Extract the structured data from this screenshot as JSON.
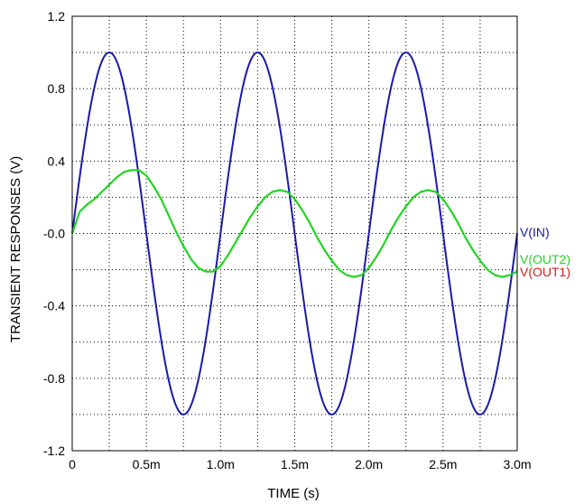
{
  "chart_data": {
    "type": "line",
    "xlabel": "TIME  (s)",
    "ylabel": "TRANSIENT RESPONSES  (V)",
    "xlim": [
      0,
      0.003
    ],
    "ylim": [
      -1.2,
      1.2
    ],
    "x_ticks": [
      {
        "value": 0,
        "label": "0"
      },
      {
        "value": 0.0005,
        "label": "0.5m"
      },
      {
        "value": 0.001,
        "label": "1.0m"
      },
      {
        "value": 0.0015,
        "label": "1.5m"
      },
      {
        "value": 0.002,
        "label": "2.0m"
      },
      {
        "value": 0.0025,
        "label": "2.5m"
      },
      {
        "value": 0.003,
        "label": "3.0m"
      }
    ],
    "y_ticks": [
      {
        "value": 1.2,
        "label": "1.2"
      },
      {
        "value": 0.8,
        "label": "0.8"
      },
      {
        "value": 0.4,
        "label": "0.4"
      },
      {
        "value": 0,
        "label": "-0.0"
      },
      {
        "value": -0.4,
        "label": "-0.4"
      },
      {
        "value": -0.8,
        "label": "-0.8"
      },
      {
        "value": -1.2,
        "label": "-1.2"
      }
    ],
    "grid": true,
    "x_grid_values": [
      0.00025,
      0.0005,
      0.00075,
      0.001,
      0.00125,
      0.0015,
      0.00175,
      0.002,
      0.00225,
      0.0025,
      0.00275
    ],
    "y_grid_values": [
      1.0,
      0.8,
      0.6,
      0.4,
      0.2,
      0,
      -0.2,
      -0.4,
      -0.6,
      -0.8,
      -1.0
    ],
    "series": [
      {
        "name": "V(IN)",
        "color": "#1a1aa8",
        "x": [
          0,
          0.00025,
          0.0005,
          0.00075,
          0.001,
          0.00125,
          0.0015,
          0.00175,
          0.002,
          0.00225,
          0.0025,
          0.00275,
          0.003
        ],
        "y": [
          0,
          1.0,
          0,
          -1.0,
          0,
          1.0,
          0,
          -1.0,
          0,
          1.0,
          0,
          -1.0,
          0
        ]
      },
      {
        "name": "V(OUT2)",
        "color": "#22d422",
        "x": [
          0,
          5e-05,
          0.0001,
          0.00015,
          0.0002,
          0.00025,
          0.0003,
          0.00035,
          0.0004,
          0.00045,
          0.0005,
          0.00055,
          0.0006,
          0.00065,
          0.0007,
          0.00075,
          0.0008,
          0.00085,
          0.0009,
          0.00095,
          0.001,
          0.00105,
          0.0011,
          0.00115,
          0.0012,
          0.00125,
          0.0013,
          0.00135,
          0.0014,
          0.00145,
          0.0015,
          0.00155,
          0.0016,
          0.00165,
          0.0017,
          0.00175,
          0.0018,
          0.00185,
          0.0019,
          0.00195,
          0.002,
          0.00205,
          0.0021,
          0.00215,
          0.0022,
          0.00225,
          0.0023,
          0.00235,
          0.0024,
          0.00245,
          0.0025,
          0.00255,
          0.0026,
          0.00265,
          0.0027,
          0.00275,
          0.0028,
          0.00285,
          0.0029,
          0.00295,
          0.003
        ],
        "y": [
          0,
          0.12,
          0.16,
          0.19,
          0.23,
          0.27,
          0.31,
          0.34,
          0.35,
          0.35,
          0.32,
          0.26,
          0.19,
          0.1,
          0.01,
          -0.07,
          -0.14,
          -0.19,
          -0.21,
          -0.21,
          -0.18,
          -0.12,
          -0.05,
          0.02,
          0.09,
          0.15,
          0.2,
          0.23,
          0.24,
          0.23,
          0.19,
          0.13,
          0.06,
          -0.02,
          -0.09,
          -0.15,
          -0.2,
          -0.23,
          -0.24,
          -0.23,
          -0.19,
          -0.13,
          -0.06,
          0.02,
          0.09,
          0.15,
          0.2,
          0.23,
          0.24,
          0.23,
          0.19,
          0.13,
          0.06,
          -0.02,
          -0.09,
          -0.15,
          -0.2,
          -0.23,
          -0.24,
          -0.23,
          -0.21
        ]
      },
      {
        "name": "V(OUT1)",
        "color": "#e01818"
      }
    ]
  }
}
